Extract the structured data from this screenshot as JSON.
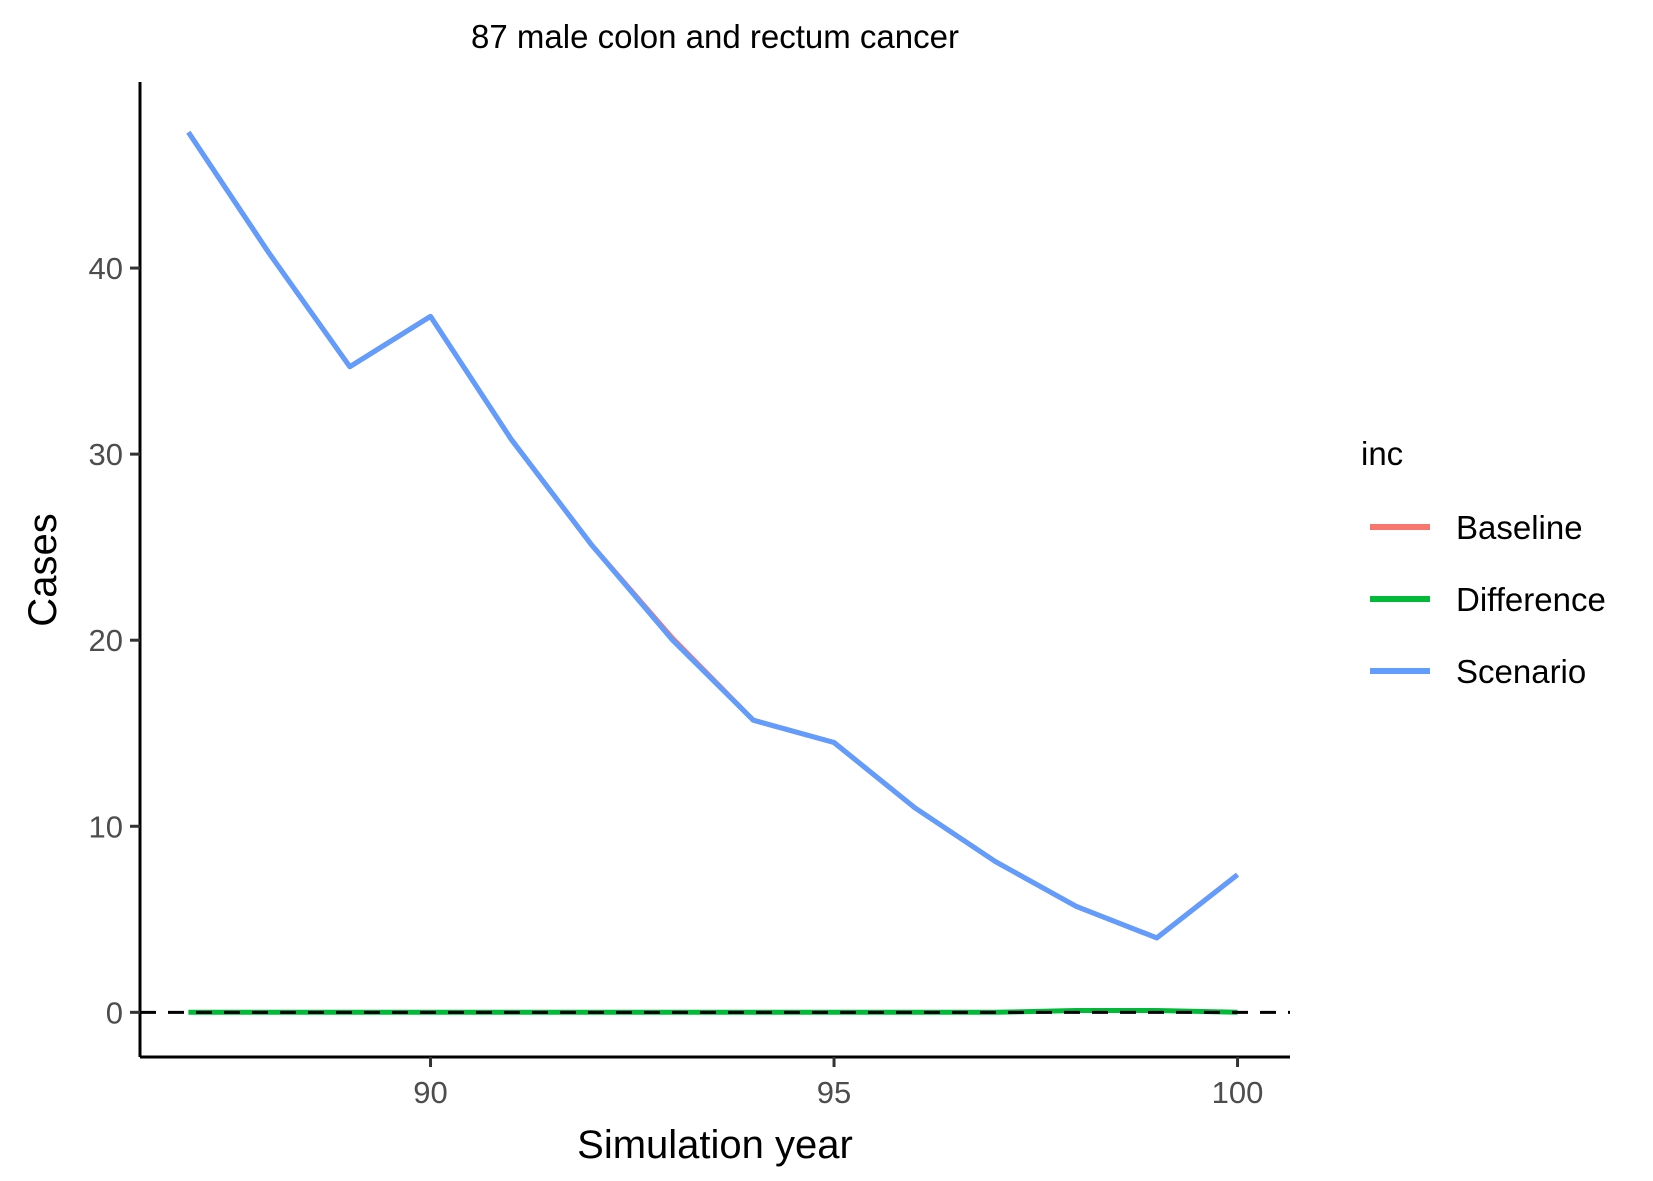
{
  "chart_data": {
    "type": "line",
    "title": "87 male colon and rectum cancer",
    "xlabel": "Simulation year",
    "ylabel": "Cases",
    "xlim": [
      86.4,
      100.65
    ],
    "ylim": [
      -2.4,
      50.0
    ],
    "x_ticks": [
      90,
      95,
      100
    ],
    "y_ticks": [
      0,
      10,
      20,
      30,
      40
    ],
    "grid": false,
    "legend": {
      "title": "inc",
      "placement": "right"
    },
    "reference_line": {
      "y": 0,
      "style": "dashed",
      "color": "#000000"
    },
    "x": [
      87,
      88,
      89,
      90,
      91,
      92,
      93,
      94,
      95,
      96,
      97,
      98,
      99,
      100
    ],
    "series": [
      {
        "name": "Baseline",
        "color": "#F8766D",
        "values": [
          47.3,
          40.8,
          34.7,
          37.4,
          30.8,
          25.1,
          20.1,
          15.7,
          14.5,
          11.0,
          8.1,
          5.7,
          4.0,
          7.4
        ]
      },
      {
        "name": "Difference",
        "color": "#00BA38",
        "values": [
          0,
          0,
          0,
          0,
          0,
          0,
          0,
          0,
          0,
          0,
          0,
          0.1,
          0.1,
          0
        ]
      },
      {
        "name": "Scenario",
        "color": "#619CFF",
        "values": [
          47.3,
          40.8,
          34.7,
          37.4,
          30.8,
          25.1,
          20.0,
          15.7,
          14.5,
          11.0,
          8.1,
          5.7,
          4.0,
          7.4
        ]
      }
    ]
  }
}
